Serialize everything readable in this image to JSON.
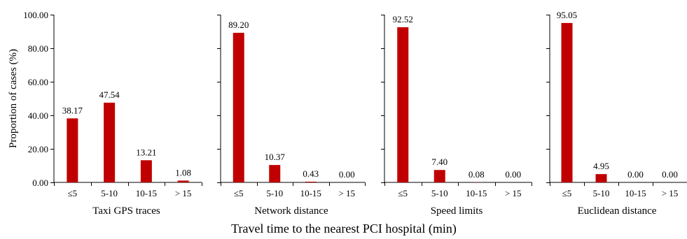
{
  "chart_data": [
    {
      "type": "bar",
      "title": "Taxi GPS traces",
      "categories": [
        "≤5",
        "5-10",
        "10-15",
        "> 15"
      ],
      "values": [
        38.17,
        47.54,
        13.21,
        1.08
      ],
      "value_labels": [
        "38.17",
        "47.54",
        "13.21",
        "1.08"
      ],
      "ylabel": "Proportion of cases (%)",
      "ylim": [
        0,
        100
      ],
      "yticks": [
        "0.00",
        "20.00",
        "40.00",
        "60.00",
        "80.00",
        "100.00"
      ]
    },
    {
      "type": "bar",
      "title": "Network distance",
      "categories": [
        "≤5",
        "5-10",
        "10-15",
        "> 15"
      ],
      "values": [
        89.2,
        10.37,
        0.43,
        0.0
      ],
      "value_labels": [
        "89.20",
        "10.37",
        "0.43",
        "0.00"
      ],
      "ylim": [
        0,
        100
      ]
    },
    {
      "type": "bar",
      "title": "Speed limits",
      "categories": [
        "≤5",
        "5-10",
        "10-15",
        "> 15"
      ],
      "values": [
        92.52,
        7.4,
        0.08,
        0.0
      ],
      "value_labels": [
        "92.52",
        "7.40",
        "0.08",
        "0.00"
      ],
      "ylim": [
        0,
        100
      ]
    },
    {
      "type": "bar",
      "title": "Euclidean distance",
      "categories": [
        "≤5",
        "5-10",
        "10-15",
        "> 15"
      ],
      "values": [
        95.05,
        4.95,
        0.0,
        0.0
      ],
      "value_labels": [
        "95.05",
        "4.95",
        "0.00",
        "0.00"
      ],
      "ylim": [
        0,
        100
      ]
    }
  ],
  "shared_xlabel": "Travel time to the nearest PCI hospital (min)",
  "colors": {
    "bar": "#c00000",
    "axis": "#000000"
  }
}
